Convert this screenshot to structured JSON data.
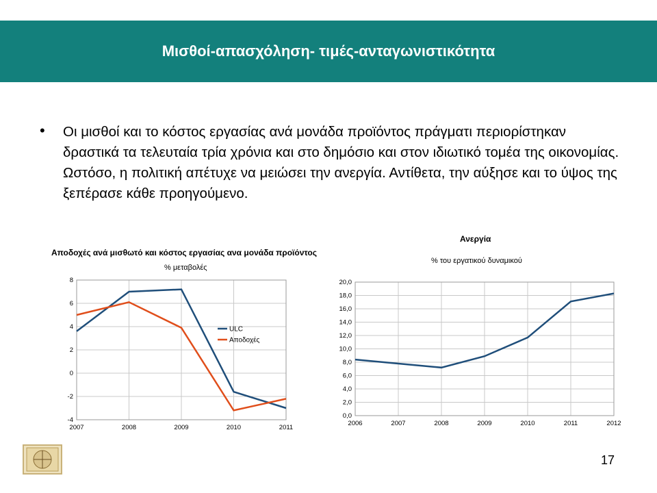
{
  "slide": {
    "title": "Μισθοί-απασχόληση- τιμές-ανταγωνιστικότητα",
    "bullet": "Οι μισθοί και το κόστος εργασίας ανά μονάδα προϊόντος πράγματι περιορίστηκαν δραστικά τα τελευταία τρία χρόνια και στο δημόσιο και στον ιδιωτικό τομέα της οικονομίας.  Ωστόσο, η πολιτική απέτυχε να μειώσει την ανεργία. Αντίθετα, την αύξησε και το ύψος της ξεπέρασε κάθε προηγούμενο.",
    "page_number": "17",
    "colors": {
      "header": "#13807c",
      "ulc": "#1f4e7a",
      "wages": "#e04e1b"
    }
  },
  "chart_data": [
    {
      "type": "line",
      "title": "Αποδοχές ανά μισθωτό και κόστος εργασίας ανα μονάδα προϊόντος",
      "subtitle": "% μεταβολές",
      "x": [
        "2007",
        "2008",
        "2009",
        "2010",
        "2011"
      ],
      "series": [
        {
          "name": "ULC",
          "color": "#1f4e7a",
          "values": [
            3.6,
            7.0,
            7.2,
            -1.6,
            -3.0
          ]
        },
        {
          "name": "Αποδοχές",
          "color": "#e04e1b",
          "values": [
            5.0,
            6.1,
            3.9,
            -3.2,
            -2.2
          ]
        }
      ],
      "ylim": [
        -4,
        8
      ],
      "yticks": [
        "-4",
        "-2",
        "0",
        "2",
        "4",
        "6",
        "8"
      ],
      "grid": true,
      "legend": "right"
    },
    {
      "type": "line",
      "title": "Ανεργία",
      "subtitle": "% του εργατικού δυναμικού",
      "x": [
        "2006",
        "2007",
        "2008",
        "2009",
        "2010",
        "2011",
        "2012"
      ],
      "series": [
        {
          "color": "#1f4e7a",
          "values": [
            8.4,
            7.8,
            7.2,
            8.9,
            11.7,
            17.1,
            18.3
          ]
        }
      ],
      "ylim": [
        0,
        20
      ],
      "yticks": [
        "0,0",
        "2,0",
        "4,0",
        "6,0",
        "8,0",
        "10,0",
        "12,0",
        "14,0",
        "16,0",
        "18,0",
        "20,0"
      ],
      "grid": true
    }
  ]
}
